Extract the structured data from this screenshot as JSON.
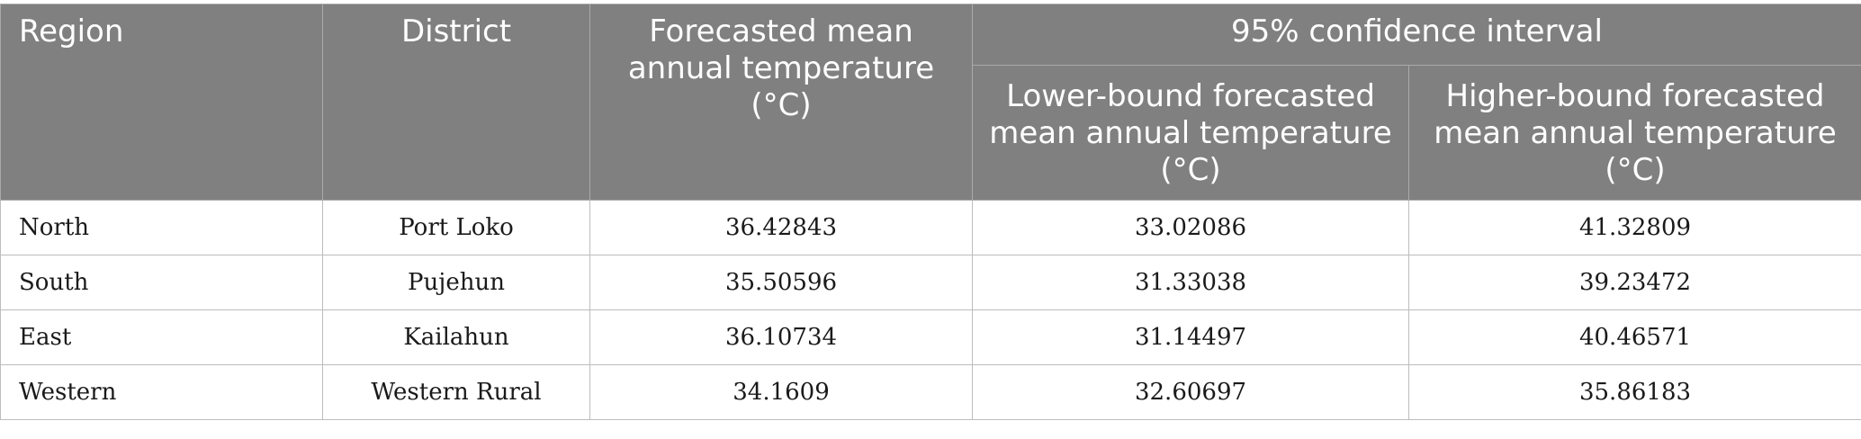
{
  "table": {
    "headers": {
      "region": "Region",
      "district": "District",
      "forecast_mean": "Forecasted mean annual temperature (°C)",
      "confidence_interval": "95% confidence interval",
      "lower_bound": "Lower-bound forecasted mean annual temperature (°C)",
      "higher_bound": "Higher-bound forecasted mean annual temperature (°C)"
    },
    "rows": [
      {
        "region": "North",
        "district": "Port Loko",
        "mean": "36.42843",
        "lower": "33.02086",
        "higher": "41.32809"
      },
      {
        "region": "South",
        "district": "Pujehun",
        "mean": "35.50596",
        "lower": "31.33038",
        "higher": "39.23472"
      },
      {
        "region": "East",
        "district": "Kailahun",
        "mean": "36.10734",
        "lower": "31.14497",
        "higher": "40.46571"
      },
      {
        "region": "Western",
        "district": "Western Rural",
        "mean": "34.1609",
        "lower": "32.60697",
        "higher": "35.86183"
      }
    ]
  }
}
